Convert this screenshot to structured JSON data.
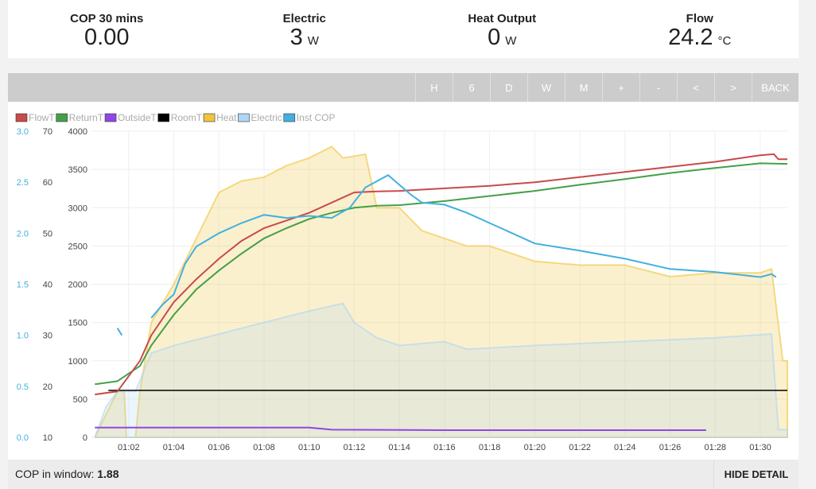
{
  "stats": [
    {
      "title": "COP 30 mins",
      "value": "0.00",
      "unit": ""
    },
    {
      "title": "Electric",
      "value": "3",
      "unit": "W"
    },
    {
      "title": "Heat Output",
      "value": "0",
      "unit": "W"
    },
    {
      "title": "Flow",
      "value": "24.2",
      "unit": "°C"
    }
  ],
  "toolbar": {
    "buttons": [
      "H",
      "6",
      "D",
      "W",
      "M",
      "+",
      "-",
      "<",
      ">"
    ],
    "back": "BACK"
  },
  "footer": {
    "cop_label": "COP in window:",
    "cop_value": "1.88",
    "hide_detail": "HIDE DETAIL"
  },
  "chart_data": {
    "type": "line",
    "legend": [
      {
        "name": "FlowT",
        "color": "#c84a4a"
      },
      {
        "name": "ReturnT",
        "color": "#44a048"
      },
      {
        "name": "OutsideT",
        "color": "#9146e6"
      },
      {
        "name": "RoomT",
        "color": "#000000"
      },
      {
        "name": "Heat",
        "color": "#f0c43c"
      },
      {
        "name": "Electric",
        "color": "#aed6f5"
      },
      {
        "name": "Inst COP",
        "color": "#43b0e0"
      }
    ],
    "x_ticks": [
      "01:02",
      "01:04",
      "01:06",
      "01:08",
      "01:10",
      "01:12",
      "01:14",
      "01:16",
      "01:18",
      "01:20",
      "01:22",
      "01:24",
      "01:26",
      "01:28",
      "01:30"
    ],
    "x_range_minutes_after_01_00": [
      0.35,
      31.2
    ],
    "cop_axis": {
      "ticks": [
        "0.0",
        "0.5",
        "1.0",
        "1.5",
        "2.0",
        "2.5",
        "3.0"
      ],
      "range": [
        0,
        3
      ]
    },
    "temp_axis": {
      "ticks": [
        "10",
        "20",
        "30",
        "40",
        "50",
        "60",
        "70"
      ],
      "range": [
        10,
        70
      ]
    },
    "power_axis": {
      "ticks": [
        "0",
        "500",
        "1000",
        "1500",
        "2000",
        "2500",
        "3000",
        "3500",
        "4000"
      ],
      "range": [
        0,
        4000
      ]
    },
    "series": {
      "FlowT": [
        [
          0.5,
          18.4
        ],
        [
          1.5,
          19
        ],
        [
          2.5,
          25
        ],
        [
          3,
          30
        ],
        [
          4,
          36.5
        ],
        [
          5,
          41
        ],
        [
          6,
          45
        ],
        [
          7,
          48.5
        ],
        [
          8,
          51
        ],
        [
          9,
          52.5
        ],
        [
          10,
          54
        ],
        [
          11,
          56
        ],
        [
          12,
          58
        ],
        [
          13,
          58.2
        ],
        [
          14,
          58.3
        ],
        [
          16,
          58.8
        ],
        [
          18,
          59.3
        ],
        [
          20,
          60
        ],
        [
          22,
          61
        ],
        [
          24,
          62
        ],
        [
          26,
          63
        ],
        [
          28,
          64
        ],
        [
          30,
          65.3
        ],
        [
          30.6,
          65.5
        ],
        [
          30.8,
          64.5
        ],
        [
          31.2,
          64.5
        ]
      ],
      "ReturnT": [
        [
          0.5,
          20.4
        ],
        [
          1.5,
          21
        ],
        [
          2.5,
          24
        ],
        [
          3,
          28
        ],
        [
          4,
          34
        ],
        [
          5,
          39
        ],
        [
          6,
          42.7
        ],
        [
          7,
          46
        ],
        [
          8,
          49
        ],
        [
          9,
          51
        ],
        [
          10,
          52.8
        ],
        [
          11,
          54
        ],
        [
          12,
          55
        ],
        [
          13,
          55.4
        ],
        [
          14,
          55.5
        ],
        [
          16,
          56.3
        ],
        [
          18,
          57.3
        ],
        [
          20,
          58.3
        ],
        [
          22,
          59.5
        ],
        [
          24,
          60.6
        ],
        [
          26,
          61.8
        ],
        [
          28,
          62.8
        ],
        [
          30,
          63.7
        ],
        [
          31.2,
          63.6
        ]
      ],
      "OutsideT": [
        [
          0.5,
          11.9
        ],
        [
          10,
          11.9
        ],
        [
          11,
          11.5
        ],
        [
          16,
          11.4
        ],
        [
          27.6,
          11.4
        ]
      ],
      "RoomT": [
        [
          1.1,
          19.2
        ],
        [
          31.2,
          19.2
        ]
      ],
      "Heat": [
        [
          0.5,
          0
        ],
        [
          1,
          300
        ],
        [
          1.5,
          600
        ],
        [
          1.8,
          600
        ],
        [
          1.9,
          0
        ],
        [
          2.3,
          0
        ],
        [
          2.5,
          600
        ],
        [
          3,
          1500
        ],
        [
          4,
          2000
        ],
        [
          5,
          2600
        ],
        [
          6,
          3200
        ],
        [
          7,
          3350
        ],
        [
          8,
          3400
        ],
        [
          9,
          3550
        ],
        [
          10,
          3650
        ],
        [
          11,
          3800
        ],
        [
          11.5,
          3650
        ],
        [
          12.5,
          3700
        ],
        [
          13,
          3000
        ],
        [
          14,
          3000
        ],
        [
          15,
          2700
        ],
        [
          16,
          2600
        ],
        [
          17,
          2500
        ],
        [
          18,
          2500
        ],
        [
          20,
          2300
        ],
        [
          22,
          2250
        ],
        [
          24,
          2250
        ],
        [
          26,
          2100
        ],
        [
          28,
          2150
        ],
        [
          30,
          2150
        ],
        [
          30.5,
          2200
        ],
        [
          31,
          1000
        ],
        [
          31.2,
          1000
        ]
      ],
      "Electric": [
        [
          0.5,
          0
        ],
        [
          1,
          400
        ],
        [
          1.5,
          600
        ],
        [
          2.3,
          600
        ],
        [
          3,
          1100
        ],
        [
          4,
          1200
        ],
        [
          6,
          1350
        ],
        [
          8,
          1500
        ],
        [
          10,
          1650
        ],
        [
          11.5,
          1750
        ],
        [
          12,
          1500
        ],
        [
          13,
          1300
        ],
        [
          14,
          1200
        ],
        [
          16,
          1250
        ],
        [
          17,
          1150
        ],
        [
          20,
          1200
        ],
        [
          24,
          1250
        ],
        [
          28,
          1300
        ],
        [
          30.5,
          1350
        ],
        [
          30.8,
          100
        ],
        [
          31.2,
          100
        ]
      ],
      "InstCOP": [
        [
          1.5,
          1.07
        ],
        [
          1.7,
          1.0
        ],
        null,
        [
          3,
          1.17
        ],
        [
          3.5,
          1.3
        ],
        [
          4,
          1.4
        ],
        [
          4.5,
          1.7
        ],
        [
          5,
          1.87
        ],
        [
          6,
          2.0
        ],
        [
          7,
          2.1
        ],
        [
          8,
          2.18
        ],
        [
          9,
          2.15
        ],
        [
          10,
          2.17
        ],
        [
          11,
          2.15
        ],
        [
          11.8,
          2.25
        ],
        [
          12.5,
          2.45
        ],
        [
          13.5,
          2.57
        ],
        [
          14.5,
          2.38
        ],
        [
          15,
          2.3
        ],
        [
          16,
          2.28
        ],
        [
          17,
          2.2
        ],
        [
          18,
          2.1
        ],
        [
          19,
          2.0
        ],
        [
          20,
          1.9
        ],
        [
          22,
          1.83
        ],
        [
          24,
          1.75
        ],
        [
          26,
          1.65
        ],
        [
          28,
          1.62
        ],
        [
          30,
          1.57
        ],
        [
          30.5,
          1.6
        ],
        [
          30.7,
          1.57
        ]
      ]
    }
  }
}
